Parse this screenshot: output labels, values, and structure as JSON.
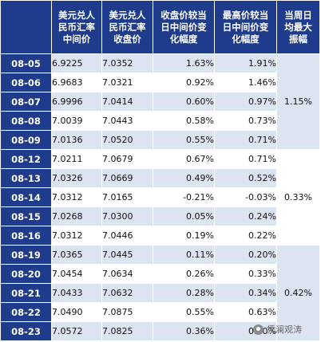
{
  "table": {
    "headers": [
      "",
      "美元兑人\n民币汇率\n中间价",
      "美元兑人\n民币汇率\n收盘价",
      "收盘价较当\n日中间价变\n化幅度",
      "最高价较当\n日中间价变\n化幅度",
      "当周日\n均最大\n振幅"
    ],
    "rows": [
      [
        "08-05",
        "6.9225",
        "7.0352",
        "1.63%",
        "1.91%"
      ],
      [
        "08-06",
        "6.9683",
        "7.0321",
        "0.92%",
        "1.46%"
      ],
      [
        "08-07",
        "6.9996",
        "7.0414",
        "0.60%",
        "0.97%"
      ],
      [
        "08-08",
        "7.0039",
        "7.0443",
        "0.58%",
        "0.73%"
      ],
      [
        "08-09",
        "7.0136",
        "7.0520",
        "0.55%",
        "0.71%"
      ],
      [
        "08-12",
        "7.0211",
        "7.0679",
        "0.67%",
        "0.71%"
      ],
      [
        "08-13",
        "7.0326",
        "7.0669",
        "0.49%",
        "0.52%"
      ],
      [
        "08-14",
        "7.0312",
        "7.0165",
        "-0.21%",
        "-0.03%"
      ],
      [
        "08-15",
        "7.0268",
        "7.0300",
        "0.05%",
        "0.24%"
      ],
      [
        "08-16",
        "7.0312",
        "7.0446",
        "0.19%",
        "0.22%"
      ],
      [
        "08-19",
        "7.0365",
        "7.0445",
        "0.11%",
        "0.20%"
      ],
      [
        "08-20",
        "7.0454",
        "7.0634",
        "0.26%",
        "0.33%"
      ],
      [
        "08-21",
        "7.0433",
        "7.0632",
        "0.28%",
        "0.34%"
      ],
      [
        "08-22",
        "7.0490",
        "7.0875",
        "0.55%",
        "0.63%"
      ],
      [
        "08-23",
        "7.0572",
        "7.0825",
        "0.36%",
        "0.60%"
      ]
    ],
    "weekly_amplitude": [
      "1.15%",
      "0.33%",
      "0.42%"
    ]
  },
  "watermark": {
    "text": "凭澜观涛",
    "icon": "wechat-logo-icon"
  }
}
